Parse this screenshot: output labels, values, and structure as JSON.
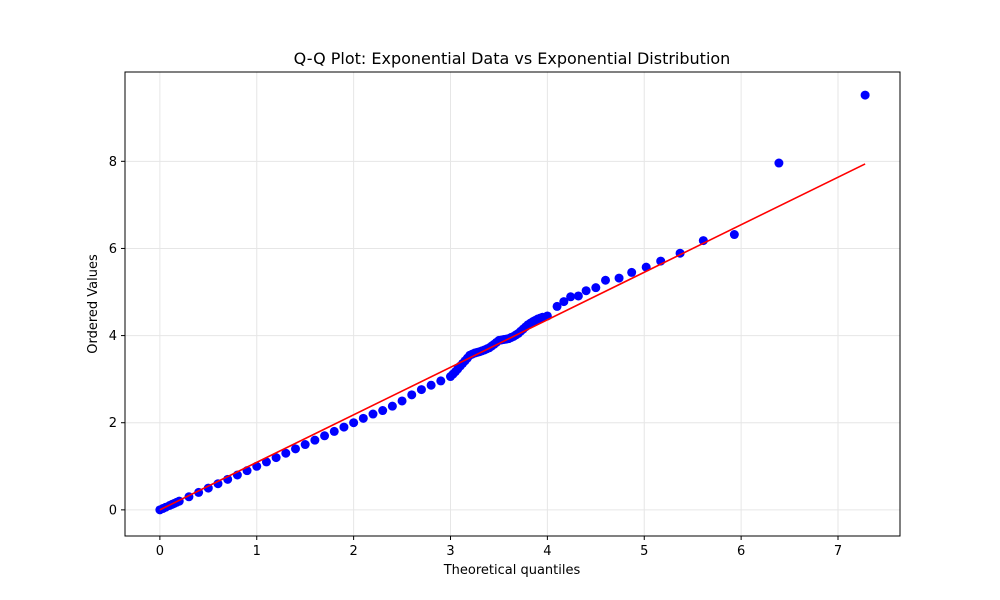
{
  "chart_data": {
    "type": "scatter",
    "title": "Q-Q Plot: Exponential Data vs Exponential Distribution",
    "xlabel": "Theoretical quantiles",
    "ylabel": "Ordered Values",
    "xlim": [
      -0.36,
      7.64
    ],
    "ylim": [
      -0.6,
      10.05
    ],
    "x_ticks": [
      0,
      1,
      2,
      3,
      4,
      5,
      6,
      7
    ],
    "y_ticks": [
      0,
      2,
      4,
      6,
      8
    ],
    "grid": true,
    "legend": "none",
    "colors": {
      "points": "#0000ff",
      "fit_line": "#ff0000",
      "grid": "#e6e6e6",
      "axes": "#000000"
    },
    "series": [
      {
        "type": "scatter",
        "x": [
          0.0,
          0.03,
          0.06,
          0.1,
          0.15,
          0.2,
          0.3,
          0.4,
          0.5,
          0.6,
          0.7,
          0.8,
          0.9,
          1.0,
          1.1,
          1.2,
          1.3,
          1.4,
          1.5,
          1.6,
          1.7,
          1.8,
          1.9,
          2.0,
          2.1,
          2.2,
          2.3,
          2.4,
          2.5,
          2.6,
          2.7,
          2.8,
          2.9,
          3.0,
          3.05,
          3.1,
          3.15,
          3.2,
          3.25,
          3.3,
          3.35,
          3.4,
          3.45,
          3.5,
          3.55,
          3.6,
          3.65,
          3.7,
          3.75,
          3.8,
          3.85,
          3.9,
          3.95,
          4.0,
          4.1,
          4.17,
          4.24,
          4.32,
          4.4,
          4.5,
          4.6,
          4.74,
          4.87,
          5.02,
          5.17,
          5.37,
          5.61,
          5.93,
          6.39,
          7.28
        ],
        "y": [
          0.0,
          0.03,
          0.06,
          0.1,
          0.15,
          0.2,
          0.3,
          0.4,
          0.5,
          0.6,
          0.7,
          0.8,
          0.9,
          1.0,
          1.1,
          1.2,
          1.3,
          1.4,
          1.5,
          1.6,
          1.7,
          1.8,
          1.9,
          2.0,
          2.1,
          2.2,
          2.28,
          2.38,
          2.5,
          2.64,
          2.76,
          2.86,
          2.96,
          3.06,
          3.17,
          3.3,
          3.42,
          3.55,
          3.6,
          3.63,
          3.67,
          3.72,
          3.8,
          3.89,
          3.91,
          3.93,
          3.98,
          4.05,
          4.15,
          4.25,
          4.32,
          4.38,
          4.42,
          4.45,
          4.67,
          4.78,
          4.89,
          4.91,
          5.03,
          5.1,
          5.27,
          5.32,
          5.45,
          5.57,
          5.71,
          5.89,
          6.18,
          6.32,
          7.96,
          9.52
        ]
      },
      {
        "type": "line",
        "x": [
          0.0,
          7.28
        ],
        "y": [
          0.0,
          7.94
        ]
      }
    ]
  }
}
